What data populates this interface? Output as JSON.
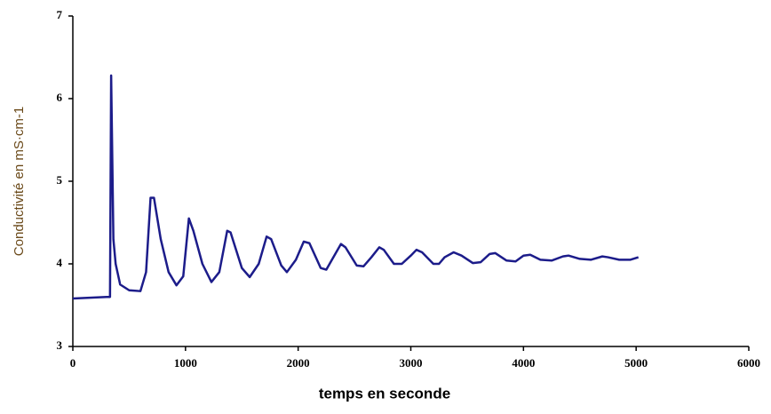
{
  "chart_data": {
    "type": "line",
    "x_label": "temps en seconde",
    "y_label": "Conductivité en mS·cm-1",
    "x": [
      0,
      300,
      330,
      340,
      360,
      380,
      420,
      500,
      600,
      650,
      690,
      720,
      780,
      850,
      920,
      980,
      1030,
      1070,
      1150,
      1230,
      1300,
      1370,
      1400,
      1500,
      1570,
      1650,
      1720,
      1760,
      1850,
      1900,
      1980,
      2050,
      2100,
      2200,
      2250,
      2300,
      2380,
      2420,
      2520,
      2580,
      2650,
      2720,
      2760,
      2850,
      2920,
      3000,
      3050,
      3100,
      3200,
      3250,
      3300,
      3380,
      3450,
      3550,
      3620,
      3700,
      3750,
      3850,
      3930,
      4000,
      4060,
      4150,
      4250,
      4350,
      4400,
      4500,
      4600,
      4700,
      4750,
      4850,
      4950,
      5020
    ],
    "series": [
      {
        "color": "#1c1c8a",
        "values": [
          3.58,
          3.6,
          3.6,
          6.28,
          4.3,
          4.0,
          3.75,
          3.68,
          3.67,
          3.9,
          4.8,
          4.8,
          4.3,
          3.9,
          3.74,
          3.85,
          4.55,
          4.4,
          4.0,
          3.78,
          3.9,
          4.4,
          4.38,
          3.95,
          3.84,
          4.0,
          4.33,
          4.3,
          3.98,
          3.9,
          4.05,
          4.27,
          4.25,
          3.95,
          3.93,
          4.05,
          4.24,
          4.2,
          3.98,
          3.97,
          4.08,
          4.2,
          4.17,
          4.0,
          4.0,
          4.1,
          4.17,
          4.14,
          4.0,
          4.0,
          4.08,
          4.14,
          4.1,
          4.01,
          4.02,
          4.12,
          4.13,
          4.04,
          4.03,
          4.1,
          4.11,
          4.05,
          4.04,
          4.09,
          4.1,
          4.06,
          4.05,
          4.09,
          4.08,
          4.05,
          4.05,
          4.08
        ]
      }
    ],
    "xlim": [
      0,
      6000
    ],
    "xticks": [
      0,
      1000,
      2000,
      3000,
      4000,
      5000,
      6000
    ],
    "ylim": [
      3,
      7
    ],
    "yticks": [
      3,
      4,
      5,
      6,
      7
    ],
    "grid": false
  }
}
